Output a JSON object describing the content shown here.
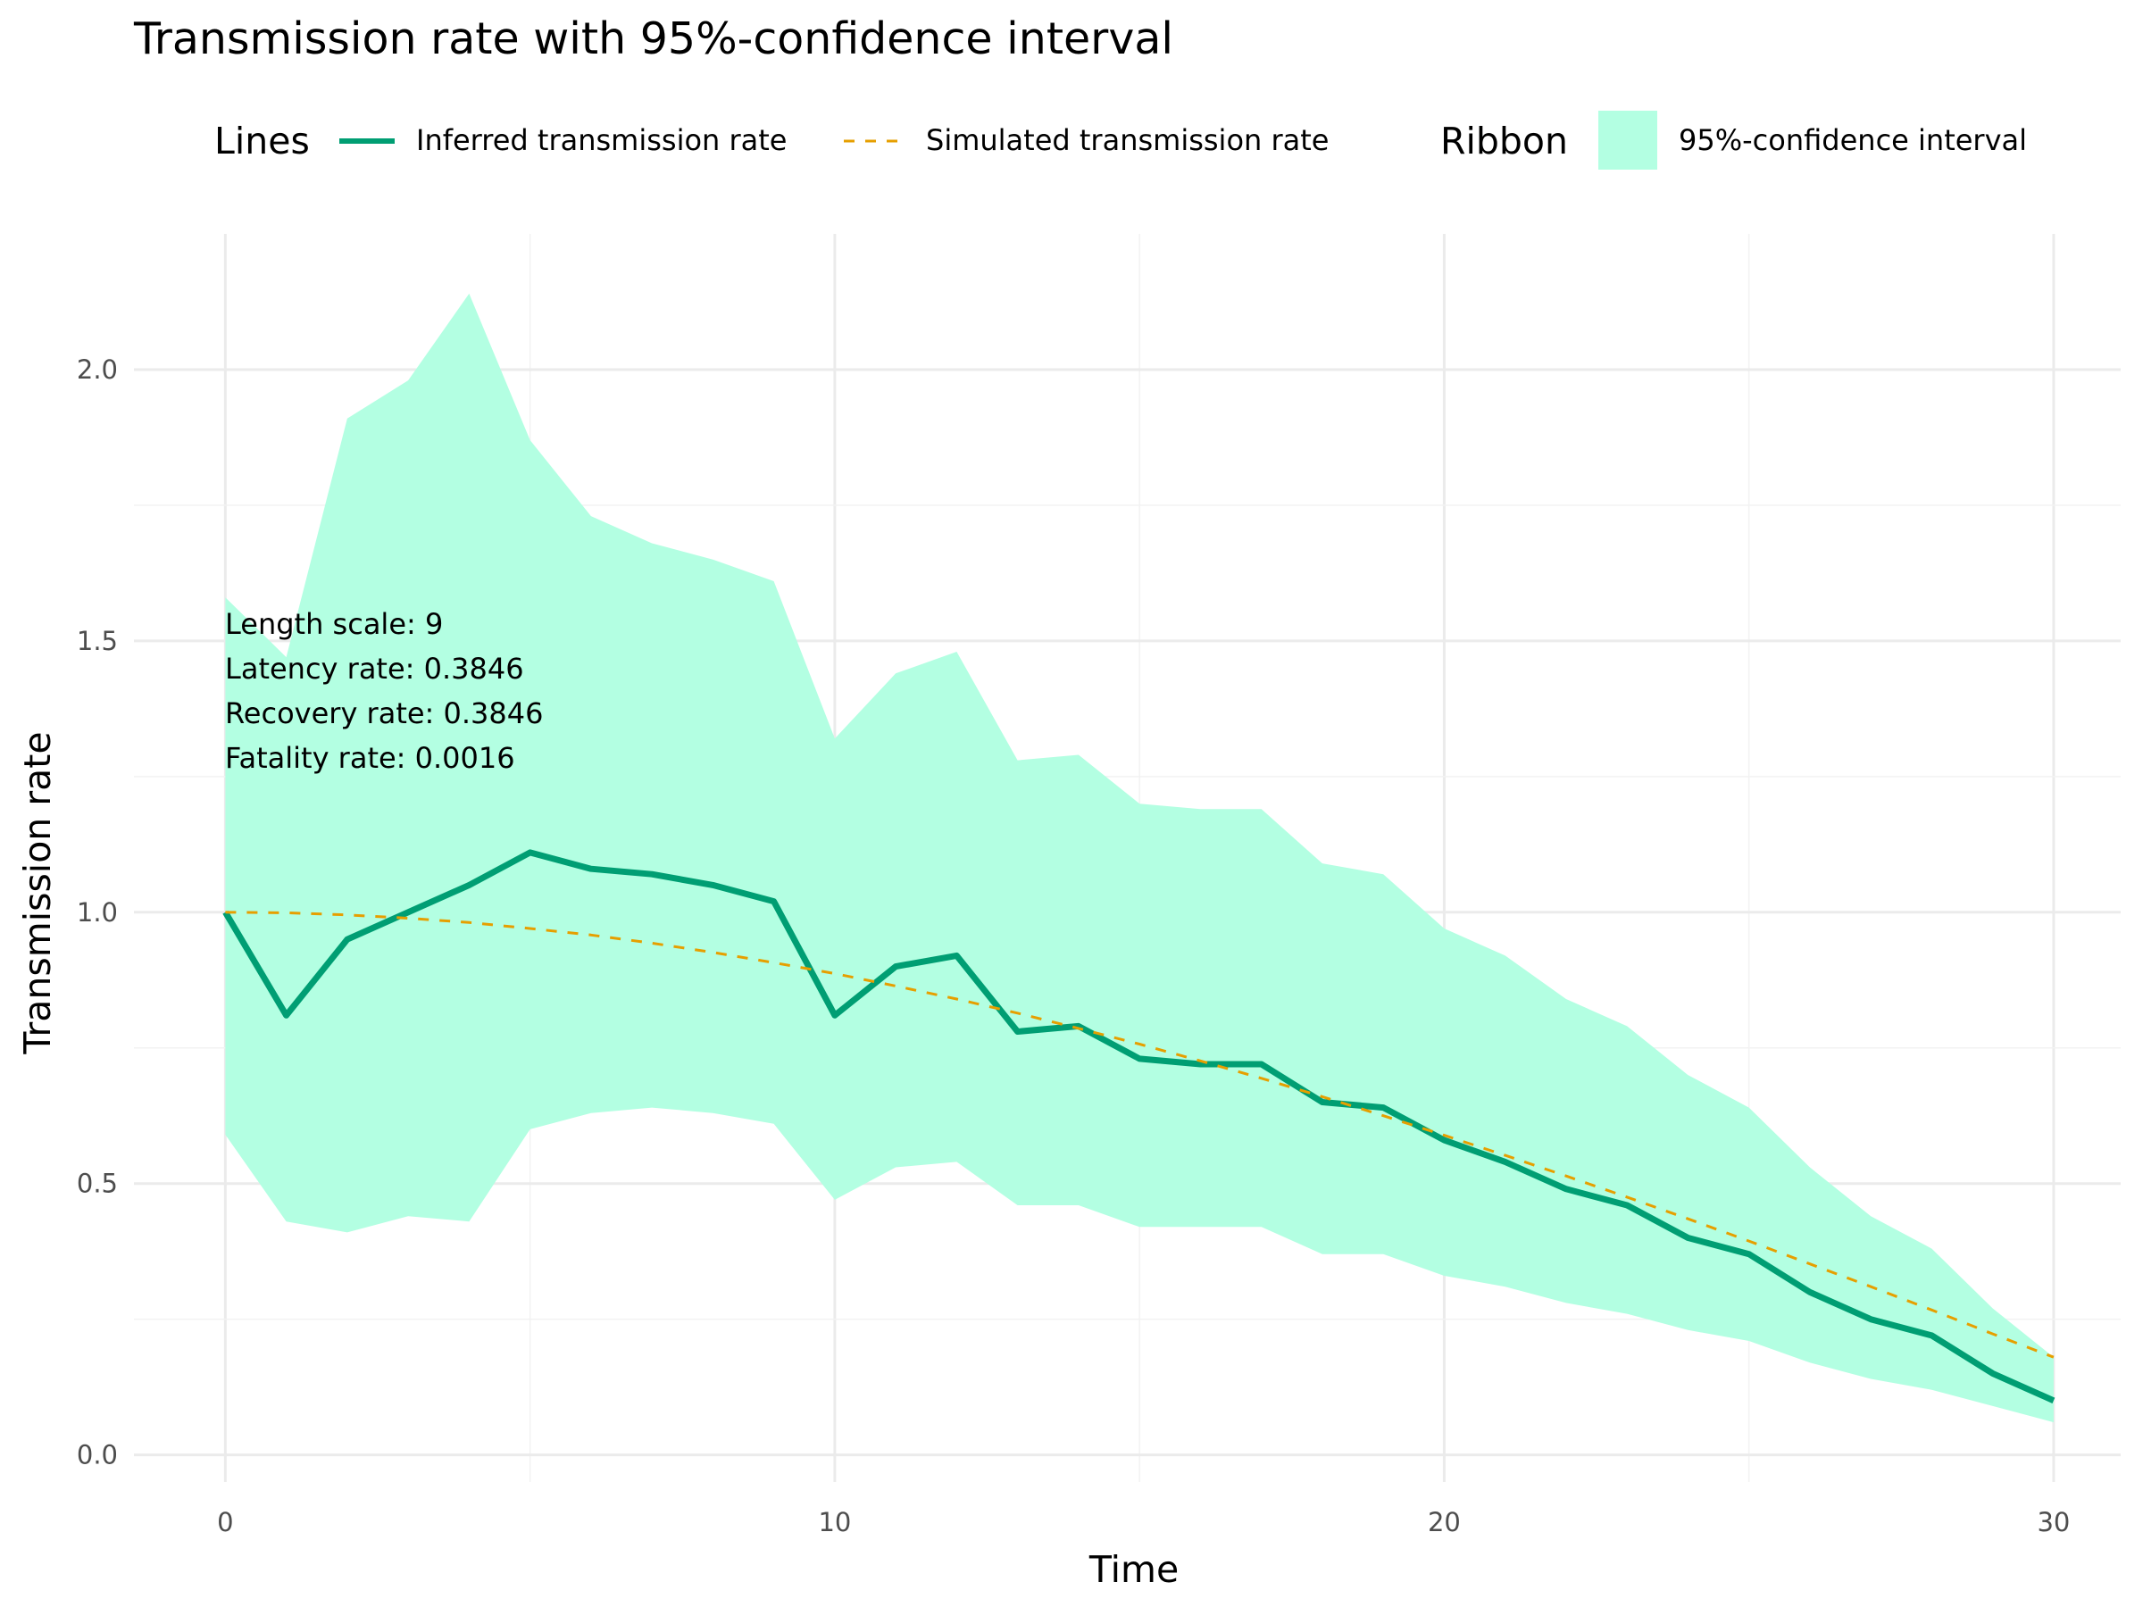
{
  "chart_data": {
    "type": "line",
    "title": "Transmission rate with 95%-confidence interval",
    "xlabel": "Time",
    "ylabel": "Transmission rate",
    "xlim": [
      -1.5,
      31.1
    ],
    "ylim": [
      -0.05,
      2.25
    ],
    "x_ticks": [
      0,
      10,
      20,
      30
    ],
    "x_tick_labels": [
      "0",
      "10",
      "20",
      "30"
    ],
    "y_ticks": [
      0.0,
      0.5,
      1.0,
      1.5,
      2.0
    ],
    "y_tick_labels": [
      "0.0",
      "0.5",
      "1.0",
      "1.5",
      "2.0"
    ],
    "grid": true,
    "legend": {
      "placement": "top",
      "lines_title": "Lines",
      "ribbon_title": "Ribbon",
      "entries": {
        "inferred": "Inferred transmission rate",
        "simulated": "Simulated transmission rate",
        "ribbon": "95%-confidence interval"
      }
    },
    "annotations": [
      "Length scale: 9",
      "Latency rate: 0.3846",
      "Recovery rate: 0.3846",
      "Fatality rate: 0.0016"
    ],
    "x": [
      0,
      1,
      2,
      3,
      4,
      5,
      6,
      7,
      8,
      9,
      10,
      11,
      12,
      13,
      14,
      15,
      16,
      17,
      18,
      19,
      20,
      21,
      22,
      23,
      24,
      25,
      26,
      27,
      28,
      29,
      30
    ],
    "series": [
      {
        "name": "Inferred transmission rate",
        "style": "solid",
        "color": "#009E73",
        "values": [
          1.0,
          0.81,
          0.95,
          1.0,
          1.05,
          1.11,
          1.08,
          1.07,
          1.05,
          1.02,
          0.81,
          0.9,
          0.92,
          0.78,
          0.79,
          0.73,
          0.72,
          0.72,
          0.65,
          0.64,
          0.58,
          0.54,
          0.49,
          0.46,
          0.4,
          0.37,
          0.3,
          0.25,
          0.22,
          0.15,
          0.1
        ]
      },
      {
        "name": "Simulated transmission rate",
        "style": "dashed",
        "color": "#E69F00",
        "values": [
          1.0,
          0.999,
          0.995,
          0.989,
          0.981,
          0.97,
          0.958,
          0.943,
          0.926,
          0.907,
          0.887,
          0.864,
          0.84,
          0.814,
          0.786,
          0.757,
          0.726,
          0.694,
          0.66,
          0.625,
          0.589,
          0.552,
          0.514,
          0.475,
          0.435,
          0.394,
          0.352,
          0.31,
          0.267,
          0.223,
          0.18
        ]
      }
    ],
    "ribbon": {
      "name": "95%-confidence interval",
      "color": "#B3FFE2",
      "lower": [
        0.59,
        0.43,
        0.41,
        0.44,
        0.43,
        0.6,
        0.63,
        0.64,
        0.63,
        0.61,
        0.47,
        0.53,
        0.54,
        0.46,
        0.46,
        0.42,
        0.42,
        0.42,
        0.37,
        0.37,
        0.33,
        0.31,
        0.28,
        0.26,
        0.23,
        0.21,
        0.17,
        0.14,
        0.12,
        0.09,
        0.06
      ],
      "upper": [
        1.58,
        1.47,
        1.91,
        1.98,
        2.14,
        1.87,
        1.73,
        1.68,
        1.65,
        1.61,
        1.32,
        1.44,
        1.48,
        1.28,
        1.29,
        1.2,
        1.19,
        1.19,
        1.09,
        1.07,
        0.97,
        0.92,
        0.84,
        0.79,
        0.7,
        0.64,
        0.53,
        0.44,
        0.38,
        0.27,
        0.18
      ]
    }
  }
}
